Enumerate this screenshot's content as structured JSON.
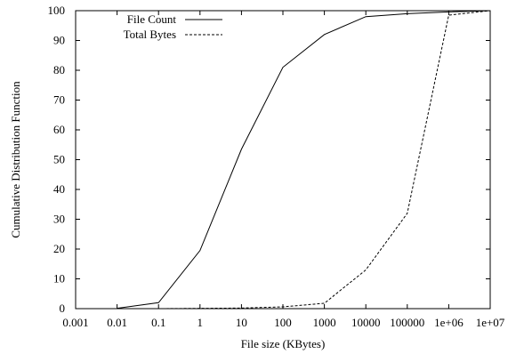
{
  "chart_data": {
    "type": "line",
    "xlabel": "File size (KBytes)",
    "ylabel": "Cumulative Distribution Function",
    "x_scale": "log",
    "xlim": [
      0.001,
      10000000
    ],
    "ylim": [
      0,
      100
    ],
    "x_ticks": [
      {
        "value": 0.001,
        "label": "0.001"
      },
      {
        "value": 0.01,
        "label": "0.01"
      },
      {
        "value": 0.1,
        "label": "0.1"
      },
      {
        "value": 1,
        "label": "1"
      },
      {
        "value": 10,
        "label": "10"
      },
      {
        "value": 100,
        "label": "100"
      },
      {
        "value": 1000,
        "label": "1000"
      },
      {
        "value": 10000,
        "label": "10000"
      },
      {
        "value": 100000,
        "label": "100000"
      },
      {
        "value": 1000000,
        "label": "1e+06"
      },
      {
        "value": 10000000,
        "label": "1e+07"
      }
    ],
    "y_ticks": [
      {
        "value": 0,
        "label": "0"
      },
      {
        "value": 10,
        "label": "10"
      },
      {
        "value": 20,
        "label": "20"
      },
      {
        "value": 30,
        "label": "30"
      },
      {
        "value": 40,
        "label": "40"
      },
      {
        "value": 50,
        "label": "50"
      },
      {
        "value": 60,
        "label": "60"
      },
      {
        "value": 70,
        "label": "70"
      },
      {
        "value": 80,
        "label": "80"
      },
      {
        "value": 90,
        "label": "90"
      },
      {
        "value": 100,
        "label": "100"
      }
    ],
    "grid": false,
    "legend_position": "top-left",
    "series": [
      {
        "name": "File Count",
        "style": "solid",
        "color": "#000000",
        "points": [
          {
            "x": 0.01,
            "y": 0.1
          },
          {
            "x": 0.1,
            "y": 2
          },
          {
            "x": 1,
            "y": 19.5
          },
          {
            "x": 10,
            "y": 53.5
          },
          {
            "x": 100,
            "y": 81
          },
          {
            "x": 1000,
            "y": 92
          },
          {
            "x": 10000,
            "y": 98
          },
          {
            "x": 100000,
            "y": 99
          },
          {
            "x": 1000000,
            "y": 99.6
          },
          {
            "x": 10000000,
            "y": 100
          }
        ]
      },
      {
        "name": "Total Bytes",
        "style": "dashed",
        "color": "#000000",
        "points": [
          {
            "x": 0.01,
            "y": 0
          },
          {
            "x": 0.1,
            "y": 0
          },
          {
            "x": 1,
            "y": 0.1
          },
          {
            "x": 10,
            "y": 0.2
          },
          {
            "x": 100,
            "y": 0.6
          },
          {
            "x": 1000,
            "y": 1.8
          },
          {
            "x": 10000,
            "y": 13
          },
          {
            "x": 100000,
            "y": 32
          },
          {
            "x": 1000000,
            "y": 98.5
          },
          {
            "x": 10000000,
            "y": 100
          }
        ]
      }
    ]
  }
}
